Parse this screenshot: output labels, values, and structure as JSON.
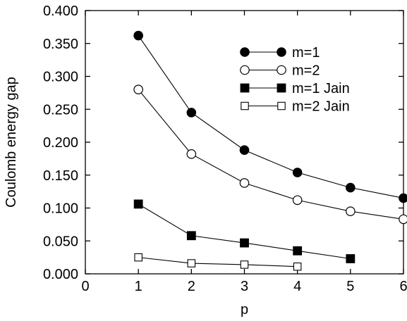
{
  "chart_data": {
    "type": "line",
    "xlabel": "p",
    "ylabel": "Coulomb energy gap",
    "xlim": [
      0,
      6
    ],
    "ylim": [
      0,
      0.4
    ],
    "xticks": [
      0,
      1,
      2,
      3,
      4,
      5,
      6
    ],
    "xtick_labels": [
      "0",
      "1",
      "2",
      "3",
      "4",
      "5",
      "6"
    ],
    "yticks": [
      0,
      0.05,
      0.1,
      0.15,
      0.2,
      0.25,
      0.3,
      0.35,
      0.4
    ],
    "ytick_labels": [
      "0.000",
      "0.050",
      "0.100",
      "0.150",
      "0.200",
      "0.250",
      "0.300",
      "0.350",
      "0.400"
    ],
    "grid": false,
    "legend_position": "top-right",
    "series": [
      {
        "name": "m=1",
        "marker": "filled-circle",
        "color": "#000000",
        "x": [
          1,
          2,
          3,
          4,
          5,
          6
        ],
        "y": [
          0.362,
          0.245,
          0.188,
          0.154,
          0.131,
          0.115
        ]
      },
      {
        "name": "m=2",
        "marker": "open-circle",
        "color": "#000000",
        "x": [
          1,
          2,
          3,
          4,
          5,
          6
        ],
        "y": [
          0.28,
          0.182,
          0.138,
          0.112,
          0.095,
          0.083
        ]
      },
      {
        "name": "m=1 Jain",
        "marker": "filled-square",
        "color": "#000000",
        "x": [
          1,
          2,
          3,
          4,
          5
        ],
        "y": [
          0.106,
          0.058,
          0.047,
          0.035,
          0.023
        ]
      },
      {
        "name": "m=2 Jain",
        "marker": "open-square",
        "color": "#000000",
        "x": [
          1,
          2,
          3,
          4
        ],
        "y": [
          0.025,
          0.016,
          0.014,
          0.011
        ]
      }
    ]
  }
}
